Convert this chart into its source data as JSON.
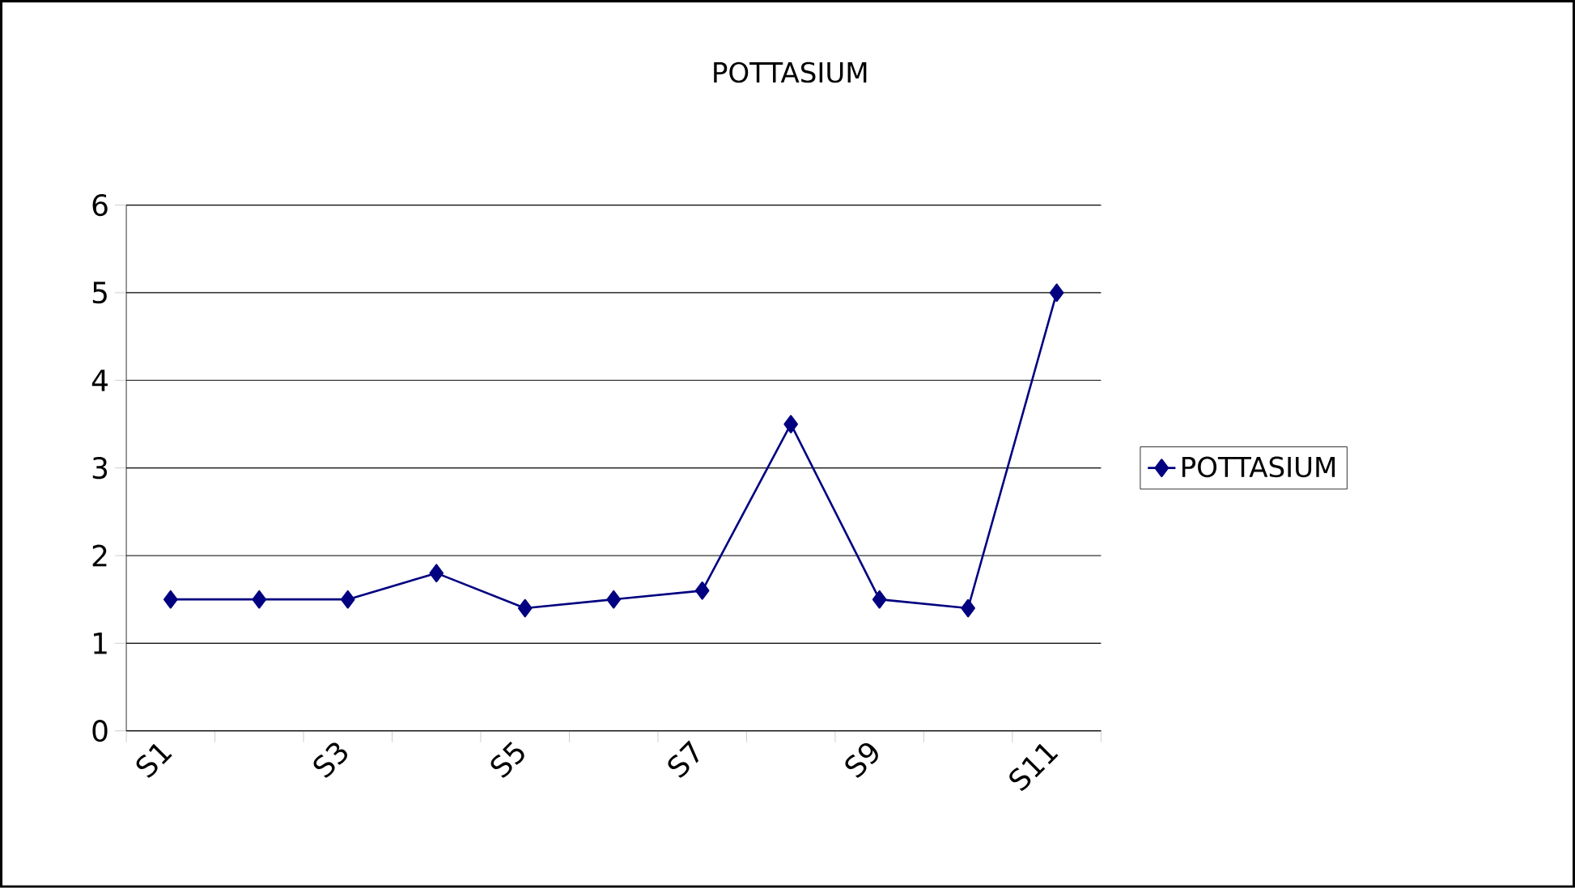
{
  "chart_data": {
    "type": "line",
    "title": "POTTASIUM",
    "categories": [
      "S1",
      null,
      "S3",
      null,
      "S5",
      null,
      "S7",
      null,
      "S9",
      null,
      "S11"
    ],
    "series": [
      {
        "name": "POTTASIUM",
        "color": "#000080",
        "values": [
          1.5,
          1.5,
          1.5,
          1.8,
          1.4,
          1.5,
          1.6,
          3.5,
          1.5,
          1.4,
          5
        ]
      }
    ],
    "ylim": [
      0,
      6
    ],
    "yticks": [
      0,
      1,
      2,
      3,
      4,
      5,
      6
    ],
    "grid": "y",
    "legend": "right",
    "marker": "diamond",
    "line_style": "solid"
  }
}
